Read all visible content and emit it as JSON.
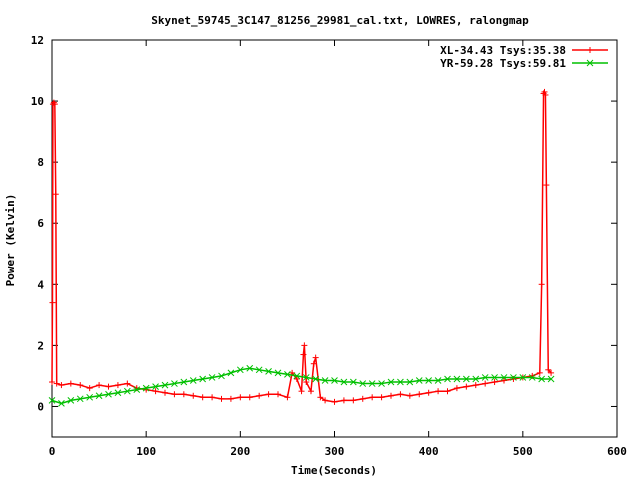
{
  "chart_data": {
    "type": "line",
    "title": "Skynet_59745_3C147_81256_29981_cal.txt, LOWRES, ralongmap",
    "xlabel": "Time(Seconds)",
    "ylabel": "Power (Kelvin)",
    "xlim": [
      0,
      600
    ],
    "ylim": [
      -1,
      12
    ],
    "xticks": [
      0,
      100,
      200,
      300,
      400,
      500,
      600
    ],
    "yticks": [
      0,
      2,
      4,
      6,
      8,
      10,
      12
    ],
    "grid": false,
    "legend_position": "top-right",
    "series": [
      {
        "name": "XL-34.43 Tsys:35.38",
        "color": "#ff0000",
        "marker": "plus",
        "points": [
          [
            0,
            0.8
          ],
          [
            0.5,
            3.4
          ],
          [
            1,
            9.9
          ],
          [
            2,
            9.95
          ],
          [
            3,
            9.9
          ],
          [
            4,
            6.95
          ],
          [
            5,
            0.75
          ],
          [
            10,
            0.7
          ],
          [
            20,
            0.75
          ],
          [
            30,
            0.7
          ],
          [
            40,
            0.6
          ],
          [
            50,
            0.7
          ],
          [
            60,
            0.65
          ],
          [
            70,
            0.7
          ],
          [
            80,
            0.75
          ],
          [
            90,
            0.6
          ],
          [
            100,
            0.55
          ],
          [
            110,
            0.5
          ],
          [
            120,
            0.45
          ],
          [
            130,
            0.4
          ],
          [
            140,
            0.4
          ],
          [
            150,
            0.35
          ],
          [
            160,
            0.3
          ],
          [
            170,
            0.3
          ],
          [
            180,
            0.25
          ],
          [
            190,
            0.25
          ],
          [
            200,
            0.3
          ],
          [
            210,
            0.3
          ],
          [
            220,
            0.35
          ],
          [
            230,
            0.4
          ],
          [
            240,
            0.4
          ],
          [
            250,
            0.3
          ],
          [
            255,
            1.1
          ],
          [
            260,
            0.9
          ],
          [
            265,
            0.5
          ],
          [
            267,
            1.7
          ],
          [
            268,
            2.0
          ],
          [
            270,
            0.8
          ],
          [
            275,
            0.5
          ],
          [
            278,
            1.4
          ],
          [
            280,
            1.6
          ],
          [
            285,
            0.3
          ],
          [
            290,
            0.2
          ],
          [
            300,
            0.15
          ],
          [
            310,
            0.2
          ],
          [
            320,
            0.2
          ],
          [
            330,
            0.25
          ],
          [
            340,
            0.3
          ],
          [
            350,
            0.3
          ],
          [
            360,
            0.35
          ],
          [
            370,
            0.4
          ],
          [
            380,
            0.35
          ],
          [
            390,
            0.4
          ],
          [
            400,
            0.45
          ],
          [
            410,
            0.5
          ],
          [
            420,
            0.5
          ],
          [
            430,
            0.6
          ],
          [
            440,
            0.65
          ],
          [
            450,
            0.7
          ],
          [
            460,
            0.75
          ],
          [
            470,
            0.8
          ],
          [
            480,
            0.85
          ],
          [
            490,
            0.9
          ],
          [
            500,
            0.95
          ],
          [
            510,
            1.0
          ],
          [
            518,
            1.1
          ],
          [
            520,
            4.0
          ],
          [
            522,
            10.25
          ],
          [
            523,
            10.3
          ],
          [
            524,
            10.2
          ],
          [
            525,
            7.25
          ],
          [
            527,
            1.2
          ],
          [
            530,
            1.1
          ]
        ]
      },
      {
        "name": "YR-59.28 Tsys:59.81",
        "color": "#00c000",
        "marker": "cross",
        "points": [
          [
            0,
            0.2
          ],
          [
            10,
            0.1
          ],
          [
            20,
            0.2
          ],
          [
            30,
            0.25
          ],
          [
            40,
            0.3
          ],
          [
            50,
            0.35
          ],
          [
            60,
            0.4
          ],
          [
            70,
            0.45
          ],
          [
            80,
            0.5
          ],
          [
            90,
            0.55
          ],
          [
            100,
            0.6
          ],
          [
            110,
            0.65
          ],
          [
            120,
            0.7
          ],
          [
            130,
            0.75
          ],
          [
            140,
            0.8
          ],
          [
            150,
            0.85
          ],
          [
            160,
            0.9
          ],
          [
            170,
            0.95
          ],
          [
            180,
            1.0
          ],
          [
            190,
            1.1
          ],
          [
            200,
            1.2
          ],
          [
            210,
            1.25
          ],
          [
            220,
            1.2
          ],
          [
            230,
            1.15
          ],
          [
            240,
            1.1
          ],
          [
            250,
            1.05
          ],
          [
            260,
            1.0
          ],
          [
            270,
            0.95
          ],
          [
            280,
            0.9
          ],
          [
            290,
            0.85
          ],
          [
            300,
            0.85
          ],
          [
            310,
            0.8
          ],
          [
            320,
            0.8
          ],
          [
            330,
            0.75
          ],
          [
            340,
            0.75
          ],
          [
            350,
            0.75
          ],
          [
            360,
            0.8
          ],
          [
            370,
            0.8
          ],
          [
            380,
            0.8
          ],
          [
            390,
            0.85
          ],
          [
            400,
            0.85
          ],
          [
            410,
            0.85
          ],
          [
            420,
            0.9
          ],
          [
            430,
            0.9
          ],
          [
            440,
            0.9
          ],
          [
            450,
            0.9
          ],
          [
            460,
            0.95
          ],
          [
            470,
            0.95
          ],
          [
            480,
            0.95
          ],
          [
            490,
            0.95
          ],
          [
            500,
            0.95
          ],
          [
            510,
            0.95
          ],
          [
            520,
            0.9
          ],
          [
            530,
            0.9
          ]
        ]
      }
    ]
  }
}
